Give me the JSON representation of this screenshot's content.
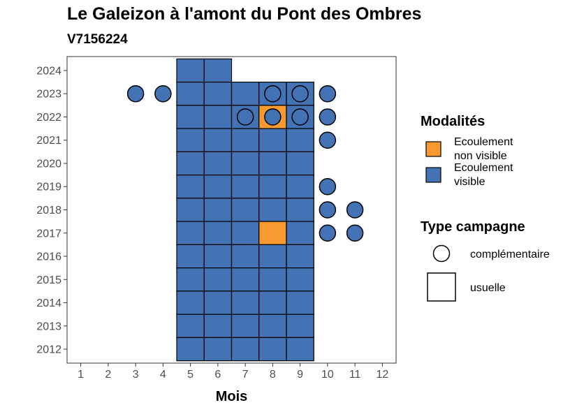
{
  "title": "Le Galeizon à l'amont du Pont des Ombres",
  "subtitle": "V7156224",
  "colors": {
    "visible": "#4372B5",
    "non_visible": "#F89A30",
    "border": "#000000"
  },
  "legend": {
    "modalites": {
      "title": "Modalités",
      "items": [
        {
          "label_line1": "Ecoulement",
          "label_line2": "non visible",
          "color": "#F89A30"
        },
        {
          "label_line1": "Ecoulement",
          "label_line2": "visible",
          "color": "#4372B5"
        }
      ]
    },
    "campagne": {
      "title": "Type campagne",
      "items": [
        {
          "label": "complémentaire",
          "shape": "circle"
        },
        {
          "label": "usuelle",
          "shape": "square"
        }
      ]
    }
  },
  "chart_data": {
    "type": "heatmap",
    "xlabel": "Mois",
    "ylabel": "",
    "x_ticks": [
      1,
      2,
      3,
      4,
      5,
      6,
      7,
      8,
      9,
      10,
      11,
      12
    ],
    "y_ticks": [
      2012,
      2013,
      2014,
      2015,
      2016,
      2017,
      2018,
      2019,
      2020,
      2021,
      2022,
      2023,
      2024
    ],
    "xlim": [
      0.5,
      12.5
    ],
    "ylim": [
      2011.4,
      2024.6
    ],
    "grid": false,
    "legend_position": "right",
    "usuelle": [
      {
        "year": 2024,
        "month": 5,
        "modalite": "visible"
      },
      {
        "year": 2024,
        "month": 6,
        "modalite": "visible"
      },
      {
        "year": 2023,
        "month": 5,
        "modalite": "visible"
      },
      {
        "year": 2023,
        "month": 6,
        "modalite": "visible"
      },
      {
        "year": 2023,
        "month": 7,
        "modalite": "visible"
      },
      {
        "year": 2023,
        "month": 8,
        "modalite": "visible"
      },
      {
        "year": 2023,
        "month": 9,
        "modalite": "visible"
      },
      {
        "year": 2022,
        "month": 5,
        "modalite": "visible"
      },
      {
        "year": 2022,
        "month": 6,
        "modalite": "visible"
      },
      {
        "year": 2022,
        "month": 7,
        "modalite": "visible"
      },
      {
        "year": 2022,
        "month": 8,
        "modalite": "non visible"
      },
      {
        "year": 2022,
        "month": 9,
        "modalite": "visible"
      },
      {
        "year": 2021,
        "month": 5,
        "modalite": "visible"
      },
      {
        "year": 2021,
        "month": 6,
        "modalite": "visible"
      },
      {
        "year": 2021,
        "month": 7,
        "modalite": "visible"
      },
      {
        "year": 2021,
        "month": 8,
        "modalite": "visible"
      },
      {
        "year": 2021,
        "month": 9,
        "modalite": "visible"
      },
      {
        "year": 2020,
        "month": 5,
        "modalite": "visible"
      },
      {
        "year": 2020,
        "month": 6,
        "modalite": "visible"
      },
      {
        "year": 2020,
        "month": 7,
        "modalite": "visible"
      },
      {
        "year": 2020,
        "month": 8,
        "modalite": "visible"
      },
      {
        "year": 2020,
        "month": 9,
        "modalite": "visible"
      },
      {
        "year": 2019,
        "month": 5,
        "modalite": "visible"
      },
      {
        "year": 2019,
        "month": 6,
        "modalite": "visible"
      },
      {
        "year": 2019,
        "month": 7,
        "modalite": "visible"
      },
      {
        "year": 2019,
        "month": 8,
        "modalite": "visible"
      },
      {
        "year": 2019,
        "month": 9,
        "modalite": "visible"
      },
      {
        "year": 2018,
        "month": 5,
        "modalite": "visible"
      },
      {
        "year": 2018,
        "month": 6,
        "modalite": "visible"
      },
      {
        "year": 2018,
        "month": 7,
        "modalite": "visible"
      },
      {
        "year": 2018,
        "month": 8,
        "modalite": "visible"
      },
      {
        "year": 2018,
        "month": 9,
        "modalite": "visible"
      },
      {
        "year": 2017,
        "month": 5,
        "modalite": "visible"
      },
      {
        "year": 2017,
        "month": 6,
        "modalite": "visible"
      },
      {
        "year": 2017,
        "month": 7,
        "modalite": "visible"
      },
      {
        "year": 2017,
        "month": 8,
        "modalite": "non visible"
      },
      {
        "year": 2017,
        "month": 9,
        "modalite": "visible"
      },
      {
        "year": 2016,
        "month": 5,
        "modalite": "visible"
      },
      {
        "year": 2016,
        "month": 6,
        "modalite": "visible"
      },
      {
        "year": 2016,
        "month": 7,
        "modalite": "visible"
      },
      {
        "year": 2016,
        "month": 8,
        "modalite": "visible"
      },
      {
        "year": 2016,
        "month": 9,
        "modalite": "visible"
      },
      {
        "year": 2015,
        "month": 5,
        "modalite": "visible"
      },
      {
        "year": 2015,
        "month": 6,
        "modalite": "visible"
      },
      {
        "year": 2015,
        "month": 7,
        "modalite": "visible"
      },
      {
        "year": 2015,
        "month": 8,
        "modalite": "visible"
      },
      {
        "year": 2015,
        "month": 9,
        "modalite": "visible"
      },
      {
        "year": 2014,
        "month": 5,
        "modalite": "visible"
      },
      {
        "year": 2014,
        "month": 6,
        "modalite": "visible"
      },
      {
        "year": 2014,
        "month": 7,
        "modalite": "visible"
      },
      {
        "year": 2014,
        "month": 8,
        "modalite": "visible"
      },
      {
        "year": 2014,
        "month": 9,
        "modalite": "visible"
      },
      {
        "year": 2013,
        "month": 5,
        "modalite": "visible"
      },
      {
        "year": 2013,
        "month": 6,
        "modalite": "visible"
      },
      {
        "year": 2013,
        "month": 7,
        "modalite": "visible"
      },
      {
        "year": 2013,
        "month": 8,
        "modalite": "visible"
      },
      {
        "year": 2013,
        "month": 9,
        "modalite": "visible"
      },
      {
        "year": 2012,
        "month": 5,
        "modalite": "visible"
      },
      {
        "year": 2012,
        "month": 6,
        "modalite": "visible"
      },
      {
        "year": 2012,
        "month": 7,
        "modalite": "visible"
      },
      {
        "year": 2012,
        "month": 8,
        "modalite": "visible"
      },
      {
        "year": 2012,
        "month": 9,
        "modalite": "visible"
      }
    ],
    "complementaire": [
      {
        "year": 2023,
        "month": 3,
        "modalite": "visible"
      },
      {
        "year": 2023,
        "month": 4,
        "modalite": "visible"
      },
      {
        "year": 2023,
        "month": 8,
        "modalite": "visible"
      },
      {
        "year": 2023,
        "month": 9,
        "modalite": "visible"
      },
      {
        "year": 2023,
        "month": 10,
        "modalite": "visible"
      },
      {
        "year": 2022,
        "month": 7,
        "modalite": "visible"
      },
      {
        "year": 2022,
        "month": 8,
        "modalite": "visible"
      },
      {
        "year": 2022,
        "month": 9,
        "modalite": "visible"
      },
      {
        "year": 2022,
        "month": 10,
        "modalite": "visible"
      },
      {
        "year": 2021,
        "month": 10,
        "modalite": "visible"
      },
      {
        "year": 2019,
        "month": 10,
        "modalite": "visible"
      },
      {
        "year": 2018,
        "month": 10,
        "modalite": "visible"
      },
      {
        "year": 2018,
        "month": 11,
        "modalite": "visible"
      },
      {
        "year": 2017,
        "month": 10,
        "modalite": "visible"
      },
      {
        "year": 2017,
        "month": 11,
        "modalite": "visible"
      }
    ]
  }
}
